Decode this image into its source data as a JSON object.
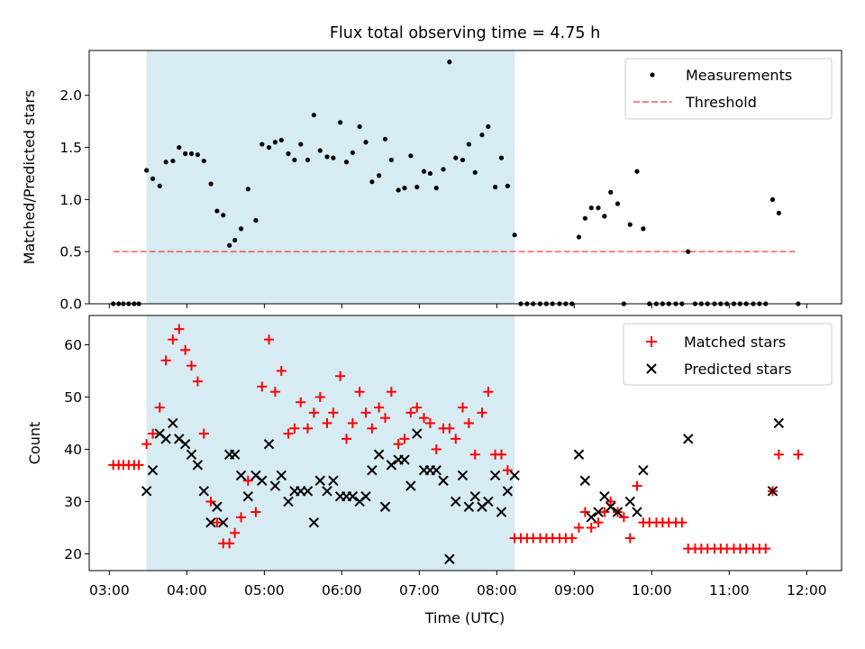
{
  "title": "Flux total observing time = 4.75 h",
  "colors": {
    "shade": "#add8e6",
    "measurement": "#000000",
    "threshold": "#ff0000",
    "matched": "#ff0000",
    "predicted": "#000000"
  },
  "x_axis": {
    "label": "Time (UTC)",
    "range_hours": [
      2.74,
      12.45
    ],
    "ticks": [
      {
        "value": 3,
        "label": "03:00"
      },
      {
        "value": 4,
        "label": "04:00"
      },
      {
        "value": 5,
        "label": "05:00"
      },
      {
        "value": 6,
        "label": "06:00"
      },
      {
        "value": 7,
        "label": "07:00"
      },
      {
        "value": 8,
        "label": "08:00"
      },
      {
        "value": 9,
        "label": "09:00"
      },
      {
        "value": 10,
        "label": "10:00"
      },
      {
        "value": 11,
        "label": "11:00"
      },
      {
        "value": 12,
        "label": "12:00"
      }
    ]
  },
  "chart_data": [
    {
      "type": "scatter",
      "title": "Flux total observing time = 4.75 h",
      "ylabel": "Matched/Predicted stars",
      "ylim": [
        0,
        2.43
      ],
      "yticks": [
        {
          "value": 0,
          "label": "0.0"
        },
        {
          "value": 0.5,
          "label": "0.5"
        },
        {
          "value": 1.0,
          "label": "1.0"
        },
        {
          "value": 1.5,
          "label": "1.5"
        },
        {
          "value": 2.0,
          "label": "2.0"
        }
      ],
      "shaded_span_hours": [
        3.48,
        8.23
      ],
      "legend": {
        "position": "top-right",
        "entries": [
          "Measurements",
          "Threshold"
        ]
      },
      "threshold": {
        "name": "Threshold",
        "y": 0.5,
        "x_range_hours": [
          3.05,
          11.88
        ]
      },
      "measurements": {
        "name": "Measurements",
        "x": [
          3.05,
          3.12,
          3.18,
          3.25,
          3.32,
          3.38,
          3.48,
          3.56,
          3.65,
          3.73,
          3.82,
          3.9,
          3.98,
          4.06,
          4.14,
          4.22,
          4.31,
          4.39,
          4.47,
          4.55,
          4.62,
          4.7,
          4.79,
          4.89,
          4.97,
          5.06,
          5.14,
          5.22,
          5.31,
          5.39,
          5.47,
          5.56,
          5.64,
          5.72,
          5.81,
          5.89,
          5.98,
          6.06,
          6.14,
          6.23,
          6.31,
          6.39,
          6.48,
          6.56,
          6.64,
          6.73,
          6.81,
          6.89,
          6.97,
          7.06,
          7.14,
          7.22,
          7.31,
          7.39,
          7.47,
          7.56,
          7.64,
          7.72,
          7.81,
          7.89,
          7.98,
          8.06,
          8.14,
          8.23,
          8.31,
          8.39,
          8.47,
          8.56,
          8.64,
          8.72,
          8.81,
          8.89,
          8.97,
          9.06,
          9.14,
          9.22,
          9.31,
          9.39,
          9.47,
          9.56,
          9.64,
          9.72,
          9.81,
          9.89,
          9.97,
          10.06,
          10.14,
          10.22,
          10.31,
          10.39,
          10.47,
          10.56,
          10.64,
          10.72,
          10.81,
          10.89,
          10.97,
          11.06,
          11.14,
          11.22,
          11.31,
          11.39,
          11.47,
          11.56,
          11.64,
          11.89
        ],
        "y": [
          0,
          0,
          0,
          0,
          0,
          0,
          1.28,
          1.2,
          1.13,
          1.36,
          1.37,
          1.5,
          1.44,
          1.44,
          1.43,
          1.37,
          1.15,
          0.89,
          0.85,
          0.56,
          0.61,
          0.72,
          1.1,
          0.8,
          1.53,
          1.5,
          1.55,
          1.57,
          1.44,
          1.38,
          1.53,
          1.38,
          1.81,
          1.47,
          1.41,
          1.4,
          1.74,
          1.36,
          1.45,
          1.7,
          1.55,
          1.17,
          1.23,
          1.58,
          1.38,
          1.09,
          1.11,
          1.42,
          1.12,
          1.27,
          1.25,
          1.11,
          1.29,
          2.32,
          1.4,
          1.38,
          1.53,
          1.26,
          1.62,
          1.7,
          1.12,
          1.4,
          1.13,
          0.66,
          0,
          0,
          0,
          0,
          0,
          0,
          0,
          0,
          0,
          0.64,
          0.82,
          0.92,
          0.92,
          0.84,
          1.07,
          0.96,
          0,
          0.76,
          1.27,
          0.72,
          0,
          0,
          0,
          0,
          0,
          0,
          0.5,
          0,
          0,
          0,
          0,
          0,
          0,
          0,
          0,
          0,
          0,
          0,
          0,
          1.0,
          0.87,
          0
        ]
      }
    },
    {
      "type": "scatter",
      "ylabel": "Count",
      "xlabel": "Time (UTC)",
      "ylim": [
        16.8,
        65.6
      ],
      "yticks": [
        {
          "value": 20,
          "label": "20"
        },
        {
          "value": 30,
          "label": "30"
        },
        {
          "value": 40,
          "label": "40"
        },
        {
          "value": 50,
          "label": "50"
        },
        {
          "value": 60,
          "label": "60"
        }
      ],
      "shaded_span_hours": [
        3.48,
        8.23
      ],
      "legend": {
        "position": "top-right",
        "entries": [
          "Matched stars",
          "Predicted stars"
        ]
      },
      "series": [
        {
          "name": "Matched stars",
          "marker": "plus",
          "x": [
            3.05,
            3.12,
            3.18,
            3.25,
            3.32,
            3.38,
            3.48,
            3.56,
            3.65,
            3.73,
            3.82,
            3.9,
            3.98,
            4.06,
            4.14,
            4.22,
            4.31,
            4.39,
            4.47,
            4.55,
            4.62,
            4.7,
            4.79,
            4.89,
            4.97,
            5.06,
            5.14,
            5.22,
            5.31,
            5.39,
            5.47,
            5.56,
            5.64,
            5.72,
            5.81,
            5.89,
            5.98,
            6.06,
            6.14,
            6.23,
            6.31,
            6.39,
            6.48,
            6.56,
            6.64,
            6.73,
            6.81,
            6.89,
            6.97,
            7.06,
            7.14,
            7.22,
            7.31,
            7.39,
            7.47,
            7.56,
            7.64,
            7.72,
            7.81,
            7.89,
            7.98,
            8.06,
            8.14,
            8.23,
            8.31,
            8.39,
            8.47,
            8.56,
            8.64,
            8.72,
            8.81,
            8.89,
            8.97,
            9.06,
            9.14,
            9.22,
            9.31,
            9.39,
            9.47,
            9.56,
            9.64,
            9.72,
            9.81,
            9.89,
            9.97,
            10.06,
            10.14,
            10.22,
            10.31,
            10.39,
            10.47,
            10.56,
            10.64,
            10.72,
            10.81,
            10.89,
            10.97,
            11.06,
            11.14,
            11.22,
            11.31,
            11.39,
            11.47,
            11.56,
            11.64,
            11.89
          ],
          "y": [
            37,
            37,
            37,
            37,
            37,
            37,
            41,
            43,
            48,
            57,
            61,
            63,
            59,
            56,
            53,
            43,
            30,
            26,
            22,
            22,
            24,
            27,
            34,
            28,
            52,
            61,
            51,
            55,
            43,
            44,
            49,
            44,
            47,
            50,
            45,
            47,
            54,
            42,
            45,
            51,
            47,
            44,
            48,
            46,
            51,
            41,
            42,
            47,
            48,
            46,
            45,
            40,
            44,
            44,
            42,
            48,
            45,
            39,
            47,
            51,
            39,
            39,
            36,
            23,
            23,
            23,
            23,
            23,
            23,
            23,
            23,
            23,
            23,
            25,
            28,
            25,
            26,
            28,
            30,
            28,
            27,
            23,
            33,
            26,
            26,
            26,
            26,
            26,
            26,
            26,
            21,
            21,
            21,
            21,
            21,
            21,
            21,
            21,
            21,
            21,
            21,
            21,
            21,
            32,
            39,
            39
          ]
        },
        {
          "name": "Predicted stars",
          "marker": "x",
          "x": [
            3.48,
            3.56,
            3.65,
            3.73,
            3.82,
            3.9,
            3.98,
            4.06,
            4.14,
            4.22,
            4.31,
            4.39,
            4.47,
            4.55,
            4.62,
            4.7,
            4.79,
            4.89,
            4.97,
            5.06,
            5.14,
            5.22,
            5.31,
            5.39,
            5.47,
            5.56,
            5.64,
            5.72,
            5.81,
            5.89,
            5.98,
            6.06,
            6.14,
            6.23,
            6.31,
            6.39,
            6.48,
            6.56,
            6.64,
            6.73,
            6.81,
            6.89,
            6.97,
            7.06,
            7.14,
            7.22,
            7.31,
            7.39,
            7.47,
            7.56,
            7.64,
            7.72,
            7.81,
            7.89,
            7.98,
            8.06,
            8.14,
            8.23,
            9.06,
            9.14,
            9.22,
            9.31,
            9.39,
            9.47,
            9.56,
            9.72,
            9.81,
            9.89,
            10.47,
            11.56,
            11.64
          ],
          "y": [
            32,
            36,
            43,
            42,
            45,
            42,
            41,
            39,
            37,
            32,
            26,
            29,
            26,
            39,
            39,
            35,
            31,
            35,
            34,
            41,
            33,
            35,
            30,
            32,
            32,
            32,
            26,
            34,
            32,
            34,
            31,
            31,
            31,
            30,
            31,
            36,
            39,
            29,
            37,
            38,
            38,
            33,
            43,
            36,
            36,
            36,
            34,
            19,
            30,
            35,
            29,
            31,
            29,
            30,
            35,
            28,
            32,
            35,
            39,
            34,
            27,
            28,
            31,
            29,
            28,
            30,
            28,
            36,
            42,
            32,
            45
          ]
        }
      ]
    }
  ]
}
